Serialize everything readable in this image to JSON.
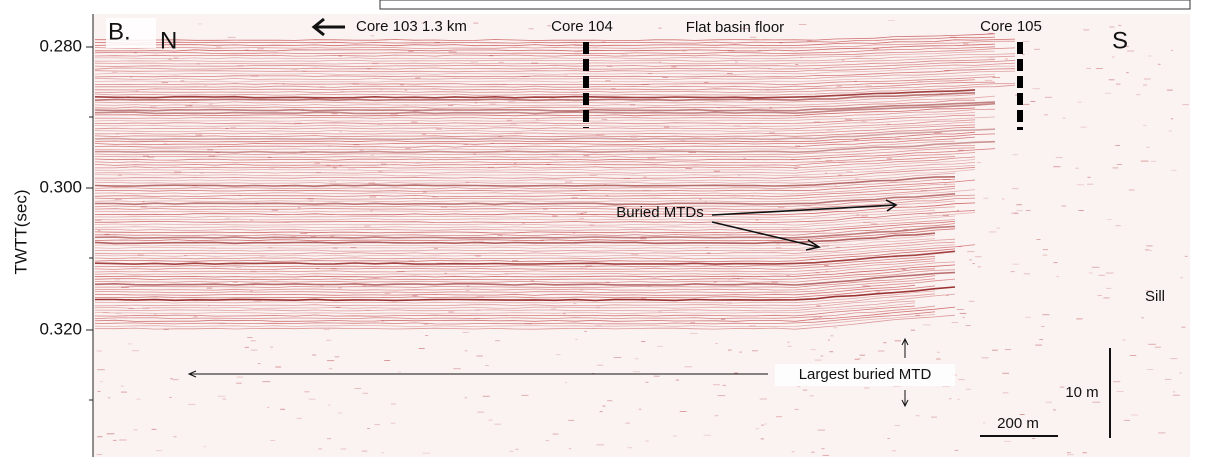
{
  "panel_label": "B.",
  "directions": {
    "north": "N",
    "south": "S"
  },
  "axis": {
    "title": "TWTT(sec)",
    "ticks": [
      "0.280",
      "0.300",
      "0.320"
    ]
  },
  "annotations": {
    "core_103": "Core 103 1.3 km",
    "core_104": "Core 104",
    "flat_basin": "Flat basin floor",
    "core_105": "Core 105",
    "buried_mtds": "Buried MTDs",
    "sill": "Sill",
    "largest_mtd": "Largest buried MTD",
    "vertical_scale": "10 m",
    "horizontal_scale": "200 m"
  }
}
